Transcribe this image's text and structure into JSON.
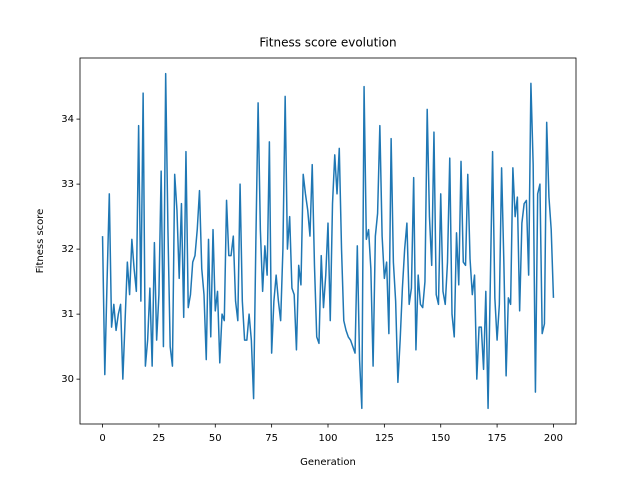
{
  "chart_data": {
    "type": "line",
    "title": "Fitness score evolution",
    "xlabel": "Generation",
    "ylabel": "Fitness score",
    "color": "#1f77b4",
    "x": [
      0,
      1,
      2,
      3,
      4,
      5,
      6,
      7,
      8,
      9,
      10,
      11,
      12,
      13,
      14,
      15,
      16,
      17,
      18,
      19,
      20,
      21,
      22,
      23,
      24,
      25,
      26,
      27,
      28,
      29,
      30,
      31,
      32,
      33,
      34,
      35,
      36,
      37,
      38,
      39,
      40,
      41,
      42,
      43,
      44,
      45,
      46,
      47,
      48,
      49,
      50,
      51,
      52,
      53,
      54,
      55,
      56,
      57,
      58,
      59,
      60,
      61,
      62,
      63,
      64,
      65,
      66,
      67,
      68,
      69,
      70,
      71,
      72,
      73,
      74,
      75,
      76,
      77,
      78,
      79,
      80,
      81,
      82,
      83,
      84,
      85,
      86,
      87,
      88,
      89,
      90,
      91,
      92,
      93,
      94,
      95,
      96,
      97,
      98,
      99,
      100,
      101,
      102,
      103,
      104,
      105,
      106,
      107,
      108,
      109,
      110,
      111,
      112,
      113,
      114,
      115,
      116,
      117,
      118,
      119,
      120,
      121,
      122,
      123,
      124,
      125,
      126,
      127,
      128,
      129,
      130,
      131,
      132,
      133,
      134,
      135,
      136,
      137,
      138,
      139,
      140,
      141,
      142,
      143,
      144,
      145,
      146,
      147,
      148,
      149,
      150,
      151,
      152,
      153,
      154,
      155,
      156,
      157,
      158,
      159,
      160,
      161,
      162,
      163,
      164,
      165,
      166,
      167,
      168,
      169,
      170,
      171,
      172,
      173,
      174,
      175,
      176,
      177,
      178,
      179,
      180,
      181,
      182,
      183,
      184,
      185,
      186,
      187,
      188,
      189,
      190,
      191,
      192,
      193,
      194,
      195,
      196,
      197,
      198,
      199,
      200
    ],
    "values": [
      32.2,
      30.07,
      31.5,
      32.85,
      30.8,
      31.15,
      30.75,
      31.0,
      31.15,
      30.0,
      30.9,
      31.8,
      31.3,
      32.15,
      31.7,
      31.35,
      33.9,
      31.2,
      34.4,
      30.2,
      30.6,
      31.4,
      30.2,
      32.1,
      30.6,
      31.3,
      33.2,
      30.5,
      34.7,
      32.3,
      30.5,
      30.2,
      33.15,
      32.6,
      31.55,
      32.7,
      30.95,
      33.5,
      31.1,
      31.3,
      31.8,
      31.9,
      32.3,
      32.9,
      31.7,
      31.3,
      30.3,
      32.15,
      30.65,
      32.3,
      31.05,
      31.35,
      30.25,
      31.0,
      30.9,
      32.75,
      31.9,
      31.9,
      32.2,
      31.2,
      30.9,
      33.0,
      31.2,
      30.6,
      30.6,
      31.0,
      30.6,
      29.7,
      32.1,
      34.25,
      32.3,
      31.35,
      32.05,
      31.6,
      33.65,
      30.4,
      31.2,
      31.6,
      31.2,
      30.9,
      32.0,
      34.35,
      32.0,
      32.5,
      31.4,
      31.3,
      30.45,
      31.75,
      31.45,
      33.15,
      32.85,
      32.6,
      32.2,
      33.3,
      31.75,
      30.65,
      30.55,
      31.9,
      31.1,
      31.6,
      32.4,
      30.9,
      32.7,
      33.45,
      32.85,
      33.55,
      32.0,
      30.9,
      30.75,
      30.65,
      30.6,
      30.5,
      30.4,
      32.05,
      30.3,
      29.55,
      34.5,
      32.15,
      32.3,
      31.7,
      30.2,
      32.2,
      32.55,
      33.9,
      32.2,
      31.55,
      31.8,
      30.7,
      33.7,
      31.8,
      31.2,
      29.95,
      30.6,
      31.4,
      32.0,
      32.4,
      31.15,
      31.4,
      33.1,
      30.45,
      31.6,
      31.15,
      31.1,
      31.5,
      34.15,
      32.5,
      31.75,
      33.8,
      31.3,
      31.15,
      32.85,
      31.35,
      31.15,
      31.8,
      33.4,
      31.0,
      30.65,
      32.25,
      31.45,
      33.35,
      31.8,
      31.75,
      33.15,
      31.85,
      31.3,
      31.6,
      30.0,
      30.8,
      30.8,
      30.15,
      31.35,
      29.55,
      31.5,
      33.5,
      31.25,
      30.6,
      31.15,
      33.25,
      31.8,
      30.05,
      31.25,
      31.15,
      33.25,
      32.5,
      32.8,
      31.05,
      32.4,
      32.7,
      32.75,
      31.6,
      34.55,
      33.3,
      29.8,
      32.85,
      33.0,
      30.7,
      30.85,
      33.95,
      32.8,
      32.3,
      31.25
    ],
    "xlim": [
      -10,
      210
    ],
    "xticks": [
      0,
      25,
      50,
      75,
      100,
      125,
      150,
      175,
      200
    ],
    "ylim": [
      29.31,
      34.94
    ],
    "yticks": [
      30,
      31,
      32,
      33,
      34
    ]
  }
}
